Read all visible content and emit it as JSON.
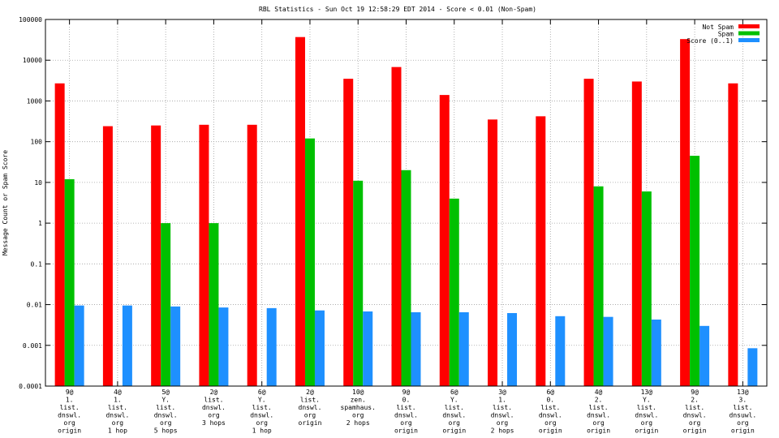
{
  "chart_data": {
    "type": "bar",
    "title": "RBL Statistics - Sun Oct 19 12:58:29 EDT 2014 - Score < 0.01 (Non-Spam)",
    "xlabel": "",
    "ylabel": "Message Count or Spam Score",
    "y_scale": "log",
    "ylim": [
      0.0001,
      100000
    ],
    "y_ticks": [
      "0.0001",
      "0.001",
      "0.01",
      "0.1",
      "1",
      "10",
      "100",
      "1000",
      "10000",
      "100000"
    ],
    "grid": true,
    "legend_position": "top-right",
    "categories": [
      [
        "9@",
        "1.",
        "list.",
        "dnswl.",
        "org",
        "origin"
      ],
      [
        "4@",
        "1.",
        "list.",
        "dnswl.",
        "org",
        "1 hop"
      ],
      [
        "5@",
        "Y.",
        "list.",
        "dnswl.",
        "org",
        "5 hops"
      ],
      [
        "2@",
        "list.",
        "dnswl.",
        "org",
        "3 hops"
      ],
      [
        "6@",
        "Y.",
        "list.",
        "dnswl.",
        "org",
        "1 hop"
      ],
      [
        "2@",
        "list.",
        "dnswl.",
        "org",
        "origin"
      ],
      [
        "10@",
        "zen.",
        "spamhaus.",
        "org",
        "2 hops"
      ],
      [
        "9@",
        "0.",
        "list.",
        "dnswl.",
        "org",
        "origin"
      ],
      [
        "6@",
        "Y.",
        "list.",
        "dnswl.",
        "org",
        "origin"
      ],
      [
        "3@",
        "1.",
        "list.",
        "dnswl.",
        "org",
        "2 hops"
      ],
      [
        "6@",
        "0.",
        "list.",
        "dnswl.",
        "org",
        "origin"
      ],
      [
        "4@",
        "2.",
        "list.",
        "dnswl.",
        "org",
        "origin"
      ],
      [
        "13@",
        "Y.",
        "list.",
        "dnswl.",
        "org",
        "origin"
      ],
      [
        "9@",
        "2.",
        "list.",
        "dnswl.",
        "org",
        "origin"
      ],
      [
        "13@",
        "3.",
        "list.",
        "dnsuwl.",
        "org",
        "origin"
      ]
    ],
    "series": [
      {
        "name": "Not Spam",
        "color": "#ff0000",
        "values": [
          2700,
          240,
          250,
          260,
          260,
          37000,
          3500,
          6800,
          1400,
          350,
          420,
          3500,
          3000,
          33000,
          2700
        ]
      },
      {
        "name": "Spam",
        "color": "#00c000",
        "values": [
          12,
          null,
          1,
          1,
          null,
          120,
          11,
          20,
          4,
          null,
          null,
          8,
          6,
          45,
          null
        ]
      },
      {
        "name": "Score (0..1)",
        "color": "#1e90ff",
        "values": [
          0.0095,
          0.0095,
          0.009,
          0.0085,
          0.0082,
          0.0072,
          0.0068,
          0.0065,
          0.0065,
          0.0062,
          0.0052,
          0.005,
          0.0043,
          0.003,
          0.00085
        ]
      }
    ]
  }
}
